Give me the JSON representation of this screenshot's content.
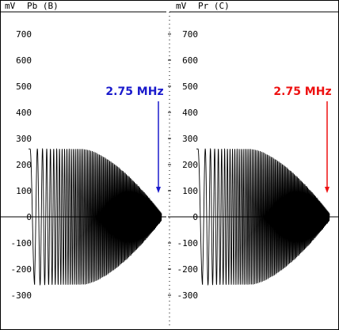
{
  "chart_data": [
    {
      "type": "line",
      "unit": "mV",
      "title": "Pb (B)",
      "yticks": [
        700,
        600,
        500,
        400,
        300,
        200,
        100,
        0,
        -100,
        -200,
        -300
      ],
      "ylim": [
        -340,
        790
      ],
      "amplitude_start_mV": 260,
      "end_frequency_label": "2.75 MHz",
      "annotation_color": "#1a1acc"
    },
    {
      "type": "line",
      "unit": "mV",
      "title": "Pr (C)",
      "yticks": [
        700,
        600,
        500,
        400,
        300,
        200,
        100,
        0,
        -100,
        -200,
        -300
      ],
      "ylim": [
        -340,
        790
      ],
      "amplitude_start_mV": 260,
      "end_frequency_label": "2.75 MHz",
      "annotation_color": "#ee1111"
    }
  ]
}
